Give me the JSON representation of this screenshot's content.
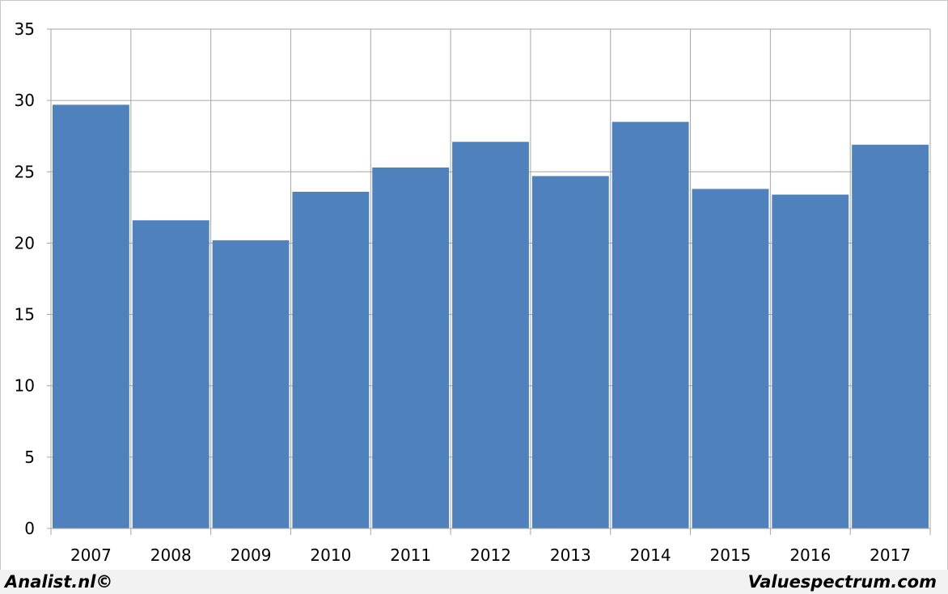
{
  "chart_data": {
    "type": "bar",
    "categories": [
      "2007",
      "2008",
      "2009",
      "2010",
      "2011",
      "2012",
      "2013",
      "2014",
      "2015",
      "2016",
      "2017"
    ],
    "values": [
      29.7,
      21.6,
      20.2,
      23.6,
      25.3,
      27.1,
      24.7,
      28.5,
      23.8,
      23.4,
      26.9
    ],
    "y_ticks": [
      "0",
      "5",
      "10",
      "15",
      "20",
      "25",
      "30",
      "35"
    ],
    "ylim": [
      0,
      35
    ],
    "grid": true,
    "bar_color": "#4f81bd",
    "grid_color": "#a6a6a6"
  },
  "footer": {
    "left_text": "Analist.nl©",
    "right_text": "Valuespectrum.com"
  }
}
